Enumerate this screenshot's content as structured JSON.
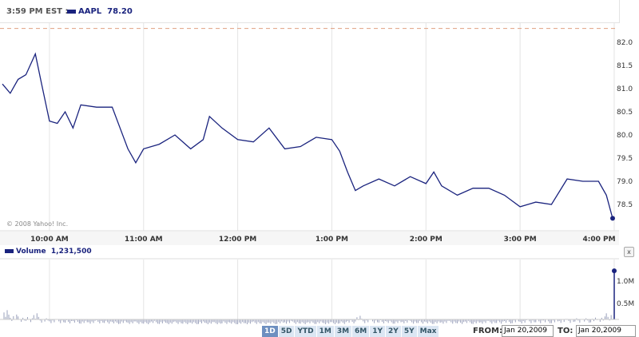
{
  "header": {
    "time": "3:59 PM EST :",
    "symbol": "AAPL",
    "price": "78.20"
  },
  "copyright": "© 2008 Yahoo! Inc.",
  "volume": {
    "label": "Volume",
    "value": "1,231,500",
    "close_label": "x"
  },
  "colors": {
    "line": "#1a237e",
    "prev_close": "#e0a080",
    "grid": "#e4e4e4",
    "volume": "#9aa0bb"
  },
  "chart_data": [
    {
      "type": "line",
      "prev_close": 82.3,
      "ylim": [
        78.2,
        82.35
      ],
      "yticks": [
        "82.0",
        "81.5",
        "81.0",
        "80.5",
        "80.0",
        "79.5",
        "79.0",
        "78.5"
      ],
      "xticks": [
        "10:00 AM",
        "11:00 AM",
        "12:00 PM",
        "1:00 PM",
        "2:00 PM",
        "3:00 PM",
        "4:00 PM"
      ],
      "points": [
        [
          "9:30",
          81.1
        ],
        [
          "9:35",
          80.9
        ],
        [
          "9:40",
          81.2
        ],
        [
          "9:45",
          81.3
        ],
        [
          "9:51",
          81.75
        ],
        [
          "9:55",
          81.1
        ],
        [
          "10:00",
          80.3
        ],
        [
          "10:05",
          80.25
        ],
        [
          "10:10",
          80.5
        ],
        [
          "10:15",
          80.15
        ],
        [
          "10:20",
          80.65
        ],
        [
          "10:30",
          80.6
        ],
        [
          "10:40",
          80.6
        ],
        [
          "10:45",
          80.15
        ],
        [
          "10:50",
          79.7
        ],
        [
          "10:55",
          79.4
        ],
        [
          "11:00",
          79.7
        ],
        [
          "11:10",
          79.8
        ],
        [
          "11:20",
          80.0
        ],
        [
          "11:30",
          79.7
        ],
        [
          "11:38",
          79.9
        ],
        [
          "11:42",
          80.4
        ],
        [
          "11:50",
          80.15
        ],
        [
          "12:00",
          79.9
        ],
        [
          "12:10",
          79.85
        ],
        [
          "12:20",
          80.15
        ],
        [
          "12:30",
          79.7
        ],
        [
          "12:40",
          79.75
        ],
        [
          "12:50",
          79.95
        ],
        [
          "13:00",
          79.9
        ],
        [
          "13:05",
          79.65
        ],
        [
          "13:10",
          79.2
        ],
        [
          "13:15",
          78.8
        ],
        [
          "13:20",
          78.9
        ],
        [
          "13:30",
          79.05
        ],
        [
          "13:40",
          78.9
        ],
        [
          "13:50",
          79.1
        ],
        [
          "14:00",
          78.95
        ],
        [
          "14:05",
          79.2
        ],
        [
          "14:10",
          78.9
        ],
        [
          "14:20",
          78.7
        ],
        [
          "14:30",
          78.85
        ],
        [
          "14:40",
          78.85
        ],
        [
          "14:50",
          78.7
        ],
        [
          "15:00",
          78.45
        ],
        [
          "15:10",
          78.55
        ],
        [
          "15:20",
          78.5
        ],
        [
          "15:30",
          79.05
        ],
        [
          "15:40",
          79.0
        ],
        [
          "15:50",
          79.0
        ],
        [
          "15:55",
          78.7
        ],
        [
          "15:59",
          78.2
        ]
      ]
    },
    {
      "type": "bar",
      "yticks": [
        "1.0M",
        "0.5M"
      ],
      "ylim": [
        0,
        1.3
      ],
      "values_millions": [
        0.25,
        0.18,
        0.15,
        0.14,
        0.2,
        0.12,
        0.1,
        0.1,
        0.09,
        0.09,
        0.08,
        0.08,
        0.09,
        0.08,
        0.07,
        0.08,
        0.07,
        0.07,
        0.06,
        0.08,
        0.07,
        0.06,
        0.07,
        0.06,
        0.06,
        0.07,
        0.06,
        0.06,
        0.07,
        0.06,
        0.06,
        0.06,
        0.07,
        0.06,
        0.06,
        0.07,
        0.08,
        0.07,
        0.06,
        0.07,
        0.07,
        0.06,
        0.06,
        0.07,
        0.09,
        0.16,
        0.1,
        0.1,
        0.09,
        0.08,
        0.08,
        0.09,
        0.08,
        0.08,
        0.07,
        0.07,
        0.08,
        0.08,
        0.07,
        0.08,
        0.07,
        0.08,
        0.08,
        0.08,
        0.09,
        0.1,
        0.09,
        0.1,
        0.1,
        0.1,
        0.1,
        0.11,
        0.11,
        0.12,
        0.12,
        0.13,
        0.15,
        0.2,
        1.23
      ]
    }
  ],
  "ranges": [
    "1D",
    "5D",
    "YTD",
    "1M",
    "3M",
    "6M",
    "1Y",
    "2Y",
    "5Y",
    "Max"
  ],
  "selected_range": "1D",
  "from": {
    "label": "FROM:",
    "value": "Jan 20,2009"
  },
  "to": {
    "label": "TO:",
    "value": "Jan 20,2009"
  }
}
